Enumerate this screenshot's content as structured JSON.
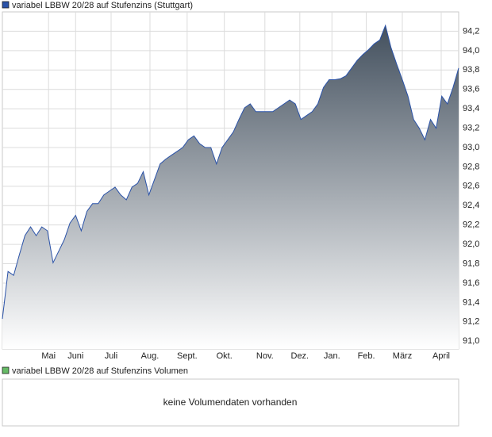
{
  "chart_data": {
    "type": "area",
    "series": [
      {
        "name": "variabel LBBW 20/28 auf Stufenzins (Stuttgart)",
        "color": "#2a52a8",
        "values": [
          91.23,
          91.72,
          91.68,
          91.89,
          92.09,
          92.18,
          92.09,
          92.18,
          92.14,
          91.81,
          91.93,
          92.05,
          92.22,
          92.3,
          92.14,
          92.34,
          92.42,
          92.42,
          92.51,
          92.55,
          92.59,
          92.51,
          92.46,
          92.59,
          92.63,
          92.75,
          92.51,
          92.67,
          92.83,
          92.88,
          92.92,
          92.96,
          93.0,
          93.08,
          93.12,
          93.04,
          93.0,
          93.0,
          92.83,
          93.0,
          93.08,
          93.16,
          93.29,
          93.41,
          93.45,
          93.37,
          93.37,
          93.37,
          93.37,
          93.41,
          93.45,
          93.49,
          93.45,
          93.29,
          93.33,
          93.37,
          93.45,
          93.62,
          93.7,
          93.7,
          93.71,
          93.74,
          93.82,
          93.9,
          93.96,
          94.01,
          94.07,
          94.11,
          94.26,
          94.03,
          93.86,
          93.7,
          93.53,
          93.29,
          93.2,
          93.08,
          93.29,
          93.2,
          93.53,
          93.45,
          93.62,
          93.82
        ]
      }
    ],
    "ylim": [
      90.92,
      94.4
    ],
    "yticks": [
      {
        "value": 91.0,
        "label": "91,0"
      },
      {
        "value": 91.2,
        "label": "91,2"
      },
      {
        "value": 91.4,
        "label": "91,4"
      },
      {
        "value": 91.6,
        "label": "91,6"
      },
      {
        "value": 91.8,
        "label": "91,8"
      },
      {
        "value": 92.0,
        "label": "92,0"
      },
      {
        "value": 92.2,
        "label": "92,2"
      },
      {
        "value": 92.4,
        "label": "92,4"
      },
      {
        "value": 92.6,
        "label": "92,6"
      },
      {
        "value": 92.8,
        "label": "92,8"
      },
      {
        "value": 93.0,
        "label": "93,0"
      },
      {
        "value": 93.2,
        "label": "93,2"
      },
      {
        "value": 93.4,
        "label": "93,4"
      },
      {
        "value": 93.6,
        "label": "93,6"
      },
      {
        "value": 93.8,
        "label": "93,8"
      },
      {
        "value": 94.0,
        "label": "94,0"
      },
      {
        "value": 94.2,
        "label": "94,2"
      }
    ],
    "xticks": [
      {
        "value": 8.2,
        "label": "Mai"
      },
      {
        "value": 13,
        "label": "Juni"
      },
      {
        "value": 19.3,
        "label": "Juli"
      },
      {
        "value": 26.2,
        "label": "Aug."
      },
      {
        "value": 32.8,
        "label": "Sept."
      },
      {
        "value": 39.4,
        "label": "Okt."
      },
      {
        "value": 46.6,
        "label": "Nov."
      },
      {
        "value": 52.8,
        "label": "Dez."
      },
      {
        "value": 58.5,
        "label": "Jan."
      },
      {
        "value": 64.6,
        "label": "Feb."
      },
      {
        "value": 71,
        "label": "März"
      },
      {
        "value": 77.9,
        "label": "April"
      }
    ],
    "grid": true
  },
  "volume_panel": {
    "legend": "variabel LBBW 20/28 auf Stufenzins Volumen",
    "color": "#66bb66",
    "message": "keine Volumendaten vorhanden"
  }
}
